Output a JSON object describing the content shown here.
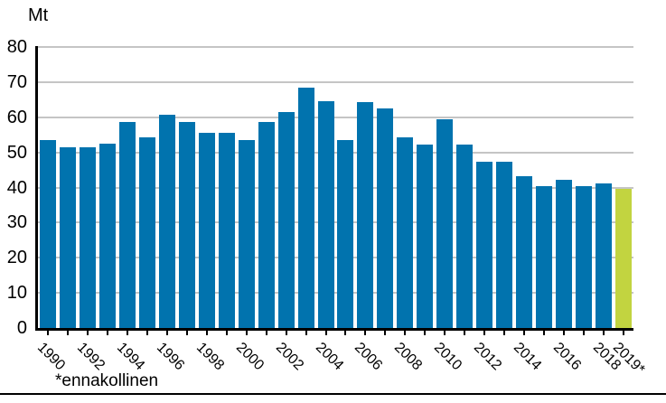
{
  "chart_data": {
    "type": "bar",
    "title": "",
    "xlabel": "",
    "ylabel": "Mt",
    "categories": [
      "1990",
      "1991",
      "1992",
      "1993",
      "1994",
      "1995",
      "1996",
      "1997",
      "1998",
      "1999",
      "2000",
      "2001",
      "2002",
      "2003",
      "2004",
      "2005",
      "2006",
      "2007",
      "2008",
      "2009",
      "2010",
      "2011",
      "2012",
      "2013",
      "2014",
      "2015",
      "2016",
      "2017",
      "2018",
      "2019"
    ],
    "values": [
      53.4,
      51.5,
      51.5,
      52.4,
      58.6,
      54.4,
      60.6,
      58.6,
      55.6,
      55.6,
      53.4,
      58.6,
      61.4,
      68.3,
      64.6,
      53.4,
      64.4,
      62.5,
      54.3,
      52.2,
      59.3,
      52.2,
      47.3,
      47.4,
      43.3,
      40.4,
      42.1,
      40.5,
      41.1,
      39.5
    ],
    "highlight_index": 29,
    "x_tick_labels": [
      "1990",
      "1992",
      "1994",
      "1996",
      "1998",
      "2000",
      "2002",
      "2004",
      "2006",
      "2008",
      "2010",
      "2012",
      "2014",
      "2016",
      "2018",
      "2019*"
    ],
    "ylim": [
      0,
      80
    ],
    "ytick_step": 10,
    "grid": true,
    "legend_position": "none",
    "footnote": "*ennakollinen",
    "colors": {
      "bar": "#0173ae",
      "highlight_bar": "#c2d440",
      "gridline": "#c5c5c5",
      "axis": "#000000"
    }
  }
}
